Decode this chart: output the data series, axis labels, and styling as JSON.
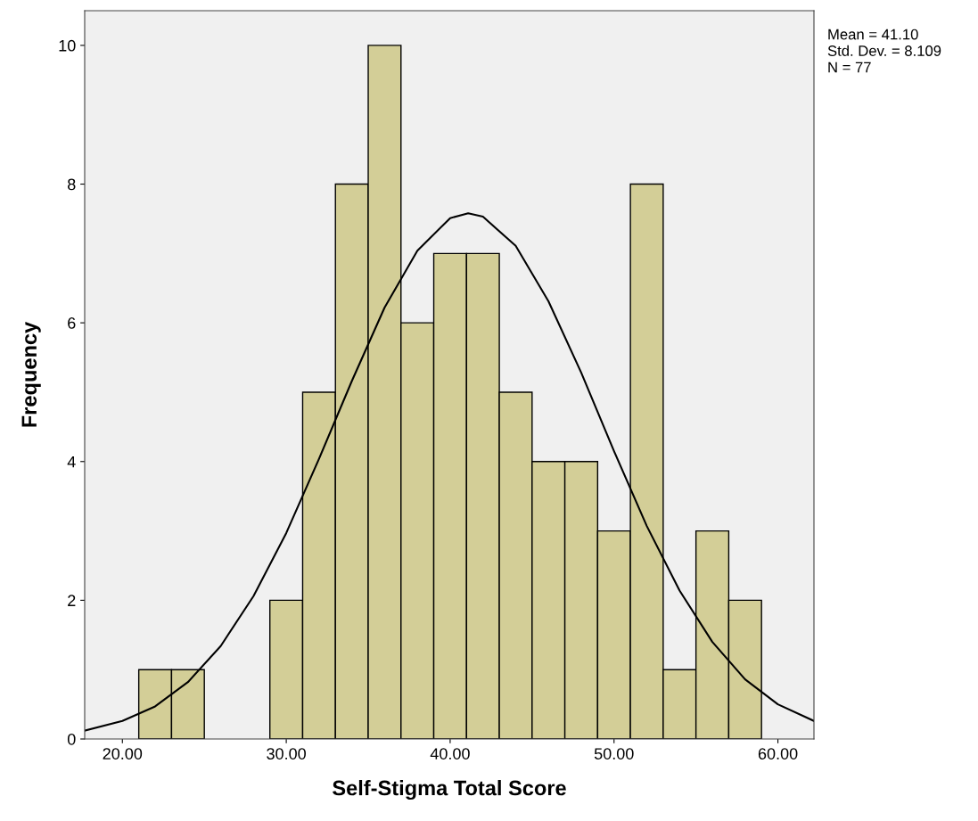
{
  "chart_data": {
    "type": "histogram",
    "xlabel": "Self-Stigma Total Score",
    "ylabel": "Frequency",
    "bins": [
      21,
      23,
      25,
      27,
      29,
      31,
      33,
      35,
      37,
      39,
      41,
      43,
      45,
      47,
      49,
      51,
      53,
      55,
      57,
      59
    ],
    "values": [
      1,
      1,
      0,
      0,
      2,
      5,
      8,
      10,
      6,
      7,
      7,
      5,
      4,
      4,
      3,
      8,
      1,
      3,
      2
    ],
    "color": "#d3ce97",
    "series": [
      {
        "type": "line",
        "color": "#000000",
        "x": [
          17.7,
          20,
          22,
          24,
          26,
          28,
          30,
          32,
          34,
          36,
          38,
          40,
          41.1,
          42,
          44,
          46,
          48,
          50,
          52,
          54,
          56,
          58,
          60,
          62.2
        ],
        "values": [
          0.12,
          0.26,
          0.47,
          0.82,
          1.34,
          2.06,
          2.97,
          4.04,
          5.16,
          6.22,
          7.04,
          7.51,
          7.58,
          7.53,
          7.11,
          6.31,
          5.28,
          4.15,
          3.07,
          2.14,
          1.4,
          0.86,
          0.5,
          0.26
        ]
      }
    ],
    "xlim": [
      17.7,
      62.2
    ],
    "ylim": [
      0,
      10.5
    ],
    "xticks": [
      {
        "value": 20,
        "label": "20.00"
      },
      {
        "value": 30,
        "label": "30.00"
      },
      {
        "value": 40,
        "label": "40.00"
      },
      {
        "value": 50,
        "label": "50.00"
      },
      {
        "value": 60,
        "label": "60.00"
      }
    ],
    "yticks": [
      0,
      2,
      4,
      6,
      8,
      10
    ],
    "annotations": [
      "Mean = 41.10",
      "Std. Dev. = 8.109",
      "N = 77"
    ]
  }
}
